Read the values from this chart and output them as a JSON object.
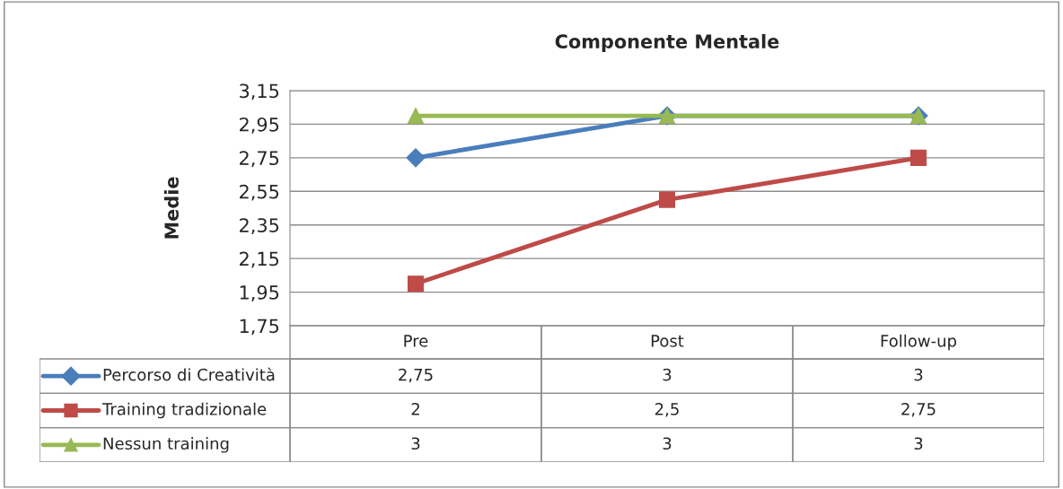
{
  "chart_data": {
    "type": "line",
    "title": "Componente Mentale",
    "ylabel": "Medie",
    "categories": [
      "Pre",
      "Post",
      "Follow-up"
    ],
    "series": [
      {
        "name": "Percorso di Creatività",
        "color": "#4a7ebb",
        "marker": "diamond",
        "values": [
          2.75,
          3,
          3
        ],
        "value_labels": [
          "2,75",
          "3",
          "3"
        ]
      },
      {
        "name": "Training tradizionale",
        "color": "#be4b48",
        "marker": "square",
        "values": [
          2,
          2.5,
          2.75
        ],
        "value_labels": [
          "2",
          "2,5",
          "2,75"
        ]
      },
      {
        "name": "Nessun training",
        "color": "#98b954",
        "marker": "triangle",
        "values": [
          3,
          3,
          3
        ],
        "value_labels": [
          "3",
          "3",
          "3"
        ]
      }
    ],
    "ylim": [
      1.75,
      3.15
    ],
    "yticks": [
      {
        "value": 1.75,
        "label": "1,75"
      },
      {
        "value": 1.95,
        "label": "1,95"
      },
      {
        "value": 2.15,
        "label": "2,15"
      },
      {
        "value": 2.35,
        "label": "2,35"
      },
      {
        "value": 2.55,
        "label": "2,55"
      },
      {
        "value": 2.75,
        "label": "2,75"
      },
      {
        "value": 2.95,
        "label": "2,95"
      },
      {
        "value": 3.15,
        "label": "3,15"
      }
    ],
    "grid": "y",
    "legend": "bottom left",
    "line_style": "solid"
  }
}
